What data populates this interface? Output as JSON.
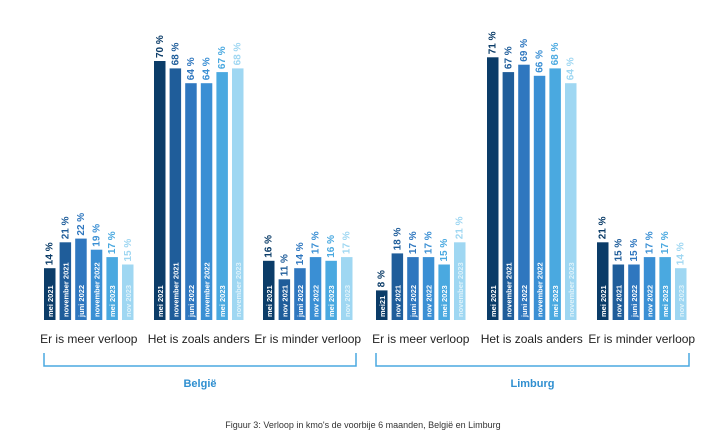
{
  "caption": "Figuur 3: Verloop in kmo's de voorbije 6 maanden, België en Limburg",
  "colors": [
    "#0b3c68",
    "#1f5d9a",
    "#2f77bf",
    "#3a8fd4",
    "#4aa9e0",
    "#9fd7f2"
  ],
  "chart_data": {
    "type": "bar",
    "series": [
      "mei 2021",
      "november 2021",
      "juni 2022",
      "november 2022",
      "mei 2023",
      "november 2023"
    ],
    "panels": [
      {
        "name": "België",
        "groups": [
          {
            "label": "Er is meer verloop",
            "values": [
              14,
              21,
              22,
              19,
              17,
              15
            ],
            "bar_labels": [
              "mei 2021",
              "november 2021",
              "juni 2022",
              "november 2022",
              "mei 2023",
              "nov 2023"
            ]
          },
          {
            "label": "Het is zoals anders",
            "values": [
              70,
              68,
              64,
              64,
              67,
              68
            ],
            "bar_labels": [
              "mei 2021",
              "november 2021",
              "juni 2022",
              "november 2022",
              "mei 2023",
              "november 2023"
            ]
          },
          {
            "label": "Er is minder verloop",
            "values": [
              16,
              11,
              14,
              17,
              16,
              17
            ],
            "bar_labels": [
              "mei 2021",
              "nov 2021",
              "juni 2022",
              "nov 2022",
              "mei 2023",
              "nov 2023"
            ]
          }
        ]
      },
      {
        "name": "Limburg",
        "groups": [
          {
            "label": "Er is meer verloop",
            "values": [
              8,
              18,
              17,
              17,
              15,
              21
            ],
            "bar_labels": [
              "mei21",
              "nov 2021",
              "juni 2022",
              "nov 2022",
              "mei 2023",
              "november 2023"
            ]
          },
          {
            "label": "Het is zoals anders",
            "values": [
              71,
              67,
              69,
              66,
              68,
              64
            ],
            "bar_labels": [
              "mei 2021",
              "november 2021",
              "juni 2022",
              "november 2022",
              "mei 2023",
              "november 2023"
            ]
          },
          {
            "label": "Er is minder verloop",
            "values": [
              21,
              15,
              15,
              17,
              17,
              14
            ],
            "bar_labels": [
              "mei 2021",
              "nov 2021",
              "juni 2022",
              "nov 2022",
              "mei 2023",
              "nov 2023"
            ]
          }
        ]
      }
    ],
    "value_suffix": " %",
    "ylim": [
      0,
      80
    ]
  }
}
